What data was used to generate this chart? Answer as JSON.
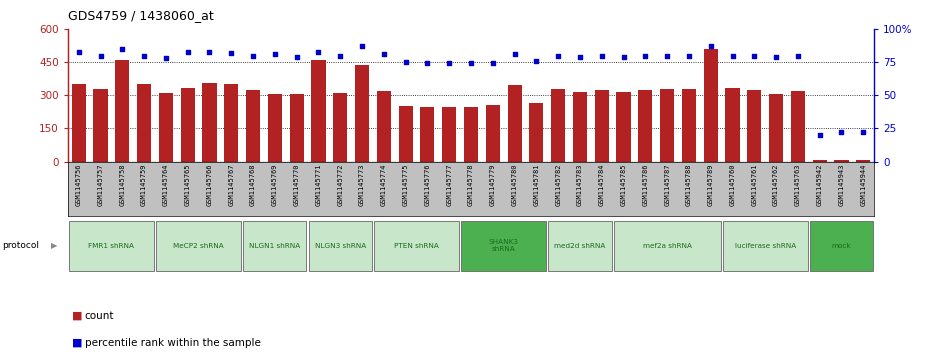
{
  "title": "GDS4759 / 1438060_at",
  "samples": [
    "GSM1145756",
    "GSM1145757",
    "GSM1145758",
    "GSM1145759",
    "GSM1145764",
    "GSM1145765",
    "GSM1145766",
    "GSM1145767",
    "GSM1145768",
    "GSM1145769",
    "GSM1145770",
    "GSM1145771",
    "GSM1145772",
    "GSM1145773",
    "GSM1145774",
    "GSM1145775",
    "GSM1145776",
    "GSM1145777",
    "GSM1145778",
    "GSM1145779",
    "GSM1145780",
    "GSM1145781",
    "GSM1145782",
    "GSM1145783",
    "GSM1145784",
    "GSM1145785",
    "GSM1145786",
    "GSM1145787",
    "GSM1145788",
    "GSM1145789",
    "GSM1145760",
    "GSM1145761",
    "GSM1145762",
    "GSM1145763",
    "GSM1145942",
    "GSM1145943",
    "GSM1145944"
  ],
  "counts": [
    350,
    330,
    460,
    350,
    310,
    335,
    355,
    350,
    325,
    305,
    305,
    460,
    310,
    435,
    320,
    250,
    245,
    245,
    245,
    255,
    345,
    265,
    330,
    315,
    325,
    315,
    325,
    330,
    330,
    510,
    335,
    325,
    305,
    320,
    8,
    8,
    8
  ],
  "percentiles": [
    83,
    80,
    85,
    80,
    78,
    83,
    83,
    82,
    80,
    81,
    79,
    83,
    80,
    87,
    81,
    75,
    74,
    74,
    74,
    74,
    81,
    76,
    80,
    79,
    80,
    79,
    80,
    80,
    80,
    87,
    80,
    80,
    79,
    80,
    20,
    22,
    22
  ],
  "protocols": [
    {
      "label": "FMR1 shRNA",
      "start": 0,
      "end": 4,
      "color": "#c8e6c9"
    },
    {
      "label": "MeCP2 shRNA",
      "start": 4,
      "end": 8,
      "color": "#c8e6c9"
    },
    {
      "label": "NLGN1 shRNA",
      "start": 8,
      "end": 11,
      "color": "#c8e6c9"
    },
    {
      "label": "NLGN3 shRNA",
      "start": 11,
      "end": 14,
      "color": "#c8e6c9"
    },
    {
      "label": "PTEN shRNA",
      "start": 14,
      "end": 18,
      "color": "#c8e6c9"
    },
    {
      "label": "SHANK3\nshRNA",
      "start": 18,
      "end": 22,
      "color": "#4caf50"
    },
    {
      "label": "med2d shRNA",
      "start": 22,
      "end": 25,
      "color": "#c8e6c9"
    },
    {
      "label": "mef2a shRNA",
      "start": 25,
      "end": 30,
      "color": "#c8e6c9"
    },
    {
      "label": "luciferase shRNA",
      "start": 30,
      "end": 34,
      "color": "#c8e6c9"
    },
    {
      "label": "mock",
      "start": 34,
      "end": 37,
      "color": "#4caf50"
    }
  ],
  "bar_color": "#b22222",
  "dot_color": "#0000cd",
  "ylim_left": [
    0,
    600
  ],
  "ylim_right": [
    0,
    100
  ],
  "yticks_left": [
    0,
    150,
    300,
    450,
    600
  ],
  "ytick_labels_left": [
    "0",
    "150",
    "300",
    "450",
    "600"
  ],
  "yticks_right": [
    0,
    25,
    50,
    75,
    100
  ],
  "ytick_labels_right": [
    "0",
    "25",
    "50",
    "75",
    "100%"
  ],
  "gridlines": [
    150,
    300,
    450
  ],
  "legend_count_label": "count",
  "legend_pct_label": "percentile rank within the sample",
  "protocol_label": "protocol",
  "tick_bg_color": "#c0c0c0"
}
